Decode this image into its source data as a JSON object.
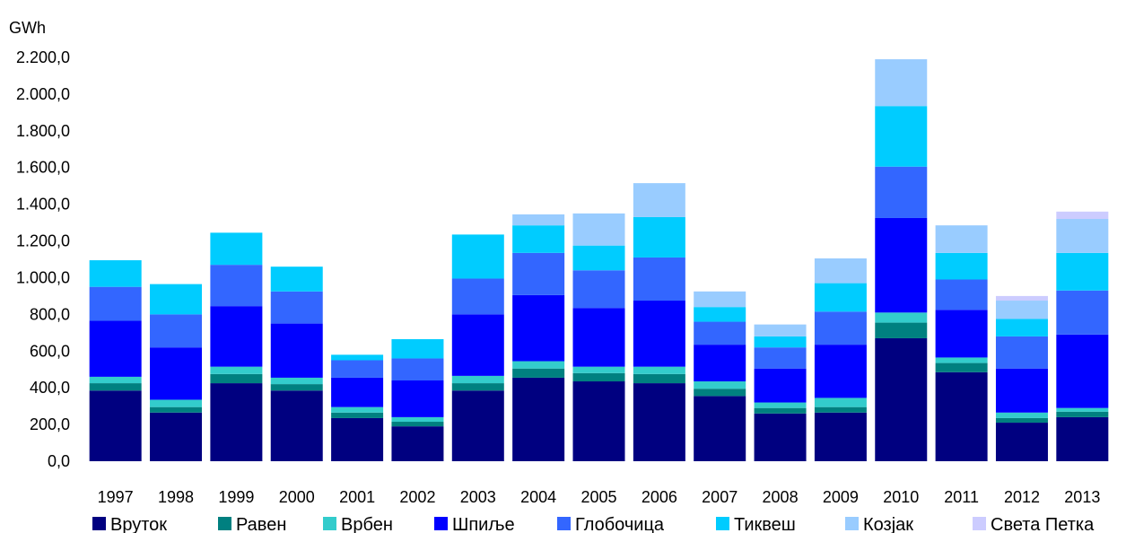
{
  "chart_data": {
    "type": "bar",
    "stacked": true,
    "ylabel": "GWh",
    "ylim": [
      0,
      2200
    ],
    "yticks": [
      "0,0",
      "200,0",
      "400,0",
      "600,0",
      "800,0",
      "1.000,0",
      "1.200,0",
      "1.400,0",
      "1.600,0",
      "1.800,0",
      "2.000,0",
      "2.200,0"
    ],
    "categories": [
      "1997",
      "1998",
      "1999",
      "2000",
      "2001",
      "2002",
      "2003",
      "2004",
      "2005",
      "2006",
      "2007",
      "2008",
      "2009",
      "2010",
      "2011",
      "2012",
      "2013"
    ],
    "legend_position": "bottom",
    "series": [
      {
        "name": "Вруток",
        "color": "#000080",
        "values": [
          385,
          265,
          425,
          385,
          235,
          190,
          385,
          455,
          435,
          425,
          355,
          260,
          265,
          670,
          485,
          210,
          240
        ]
      },
      {
        "name": "Равен",
        "color": "#008080",
        "values": [
          40,
          30,
          50,
          35,
          30,
          25,
          40,
          50,
          45,
          50,
          40,
          30,
          30,
          85,
          50,
          25,
          30
        ]
      },
      {
        "name": "Врбен",
        "color": "#33CCCC",
        "values": [
          35,
          40,
          40,
          35,
          30,
          25,
          40,
          40,
          35,
          40,
          40,
          30,
          50,
          55,
          30,
          30,
          20
        ]
      },
      {
        "name": "Шпиље",
        "color": "#0000FF",
        "values": [
          305,
          285,
          330,
          295,
          160,
          200,
          335,
          360,
          320,
          360,
          200,
          185,
          290,
          515,
          260,
          240,
          400
        ]
      },
      {
        "name": "Глобочица",
        "color": "#3366FF",
        "values": [
          185,
          180,
          225,
          175,
          95,
          120,
          195,
          230,
          205,
          235,
          125,
          115,
          180,
          280,
          165,
          175,
          240
        ]
      },
      {
        "name": "Тиквеш",
        "color": "#00CCFF",
        "values": [
          145,
          165,
          175,
          135,
          30,
          105,
          240,
          150,
          135,
          220,
          80,
          60,
          155,
          330,
          145,
          95,
          205
        ]
      },
      {
        "name": "Козјак",
        "color": "#99CCFF",
        "values": [
          0,
          0,
          0,
          0,
          0,
          0,
          0,
          60,
          175,
          185,
          85,
          65,
          135,
          255,
          150,
          100,
          185
        ]
      },
      {
        "name": "Света Петка",
        "color": "#CCCCFF",
        "values": [
          0,
          0,
          0,
          0,
          0,
          0,
          0,
          0,
          0,
          0,
          0,
          0,
          0,
          0,
          0,
          25,
          40
        ]
      }
    ]
  }
}
